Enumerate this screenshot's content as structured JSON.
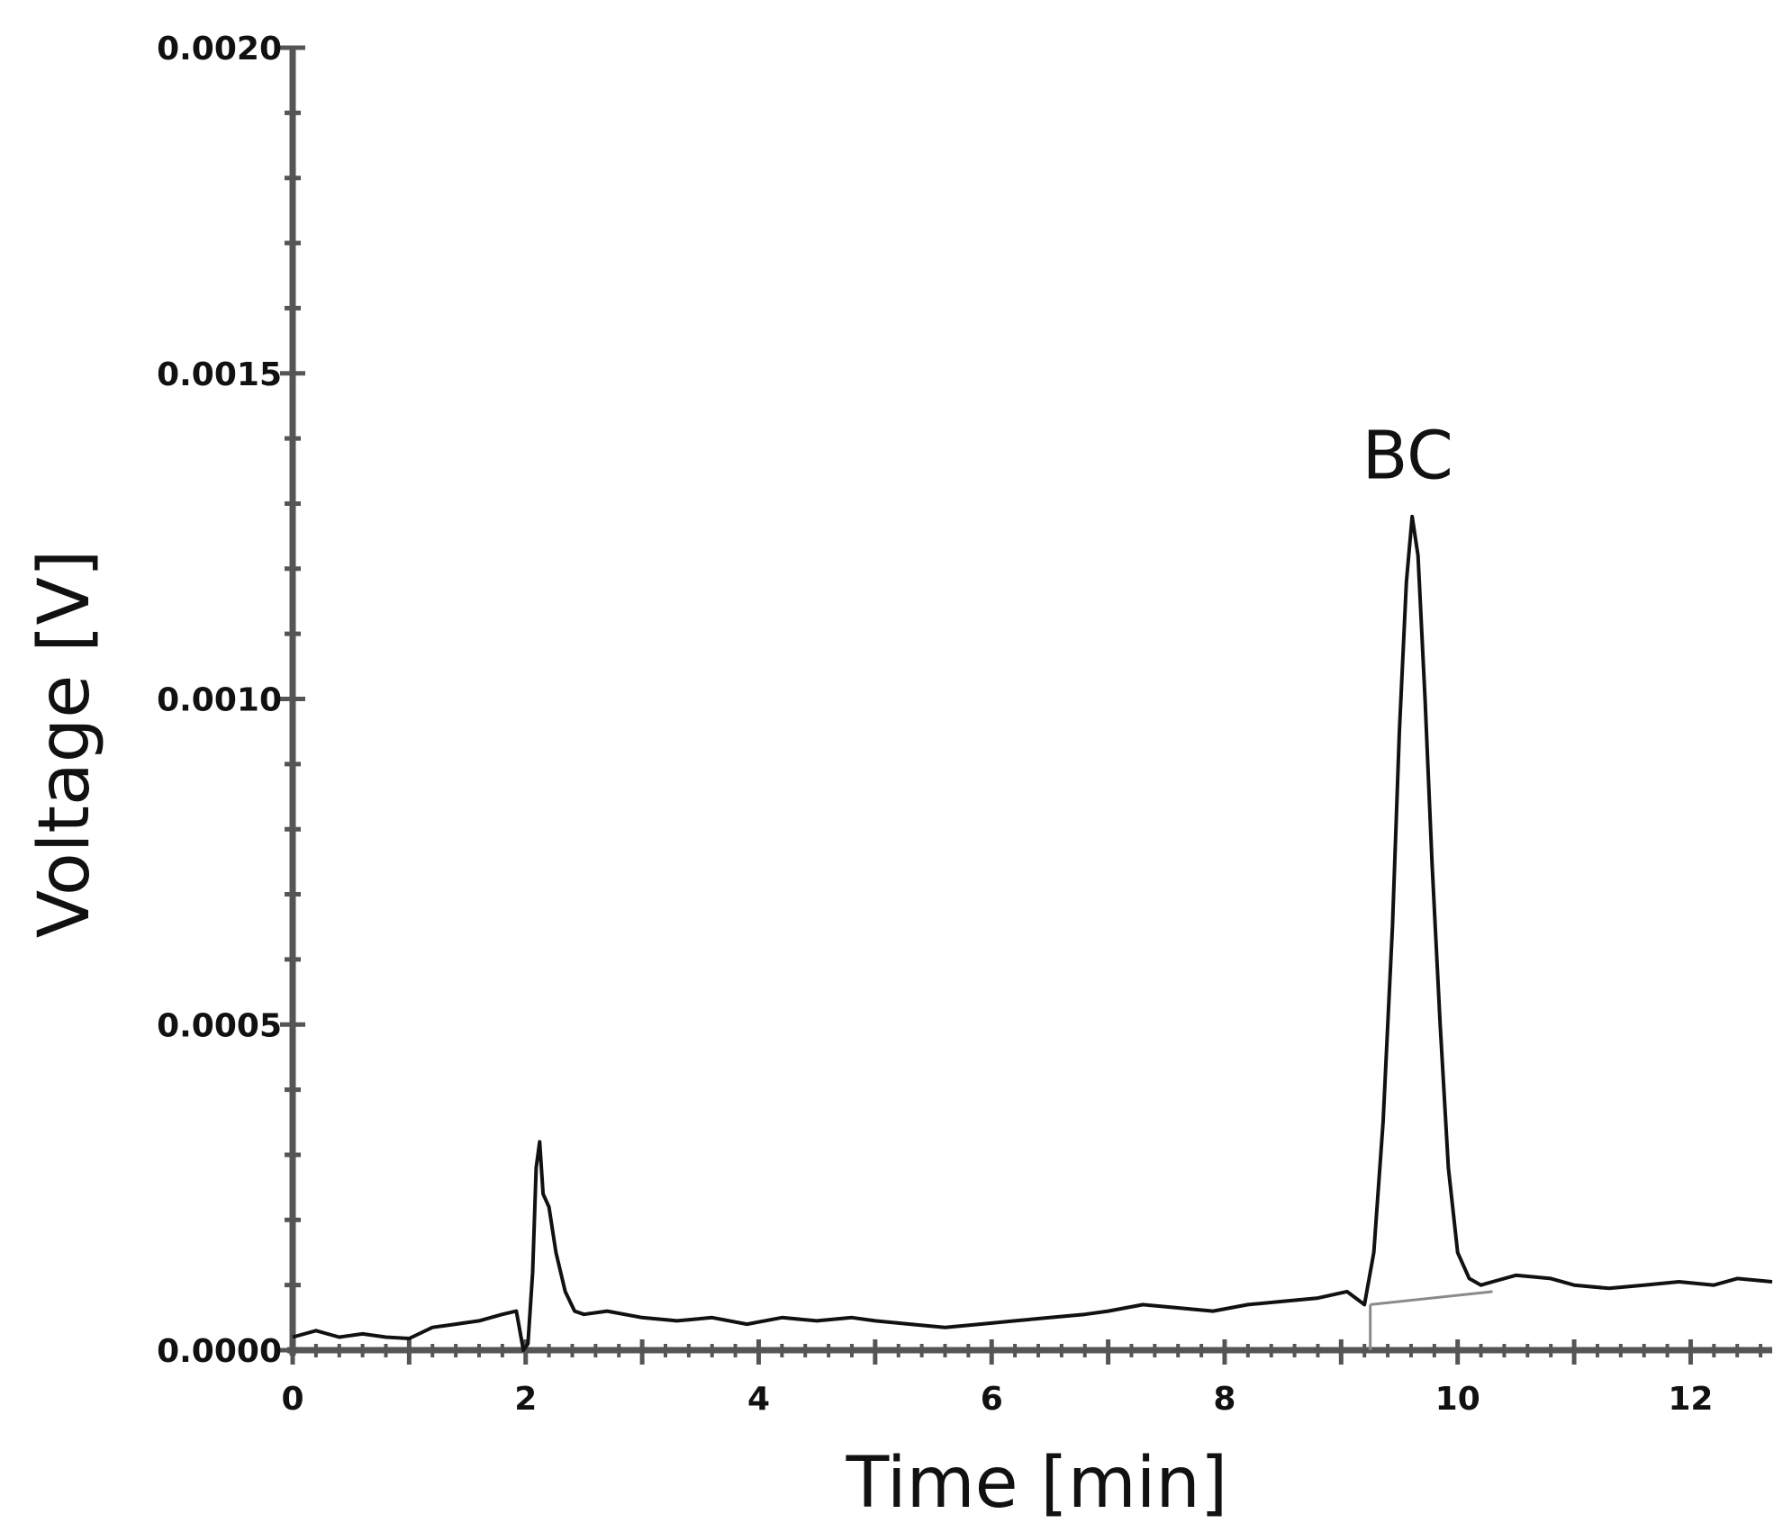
{
  "chart_data": {
    "type": "line",
    "title": "",
    "xlabel": "Time [min]",
    "ylabel": "Voltage [V]",
    "xlim": [
      0,
      12.7
    ],
    "ylim": [
      0,
      0.002
    ],
    "x_ticks": [
      "0",
      "2",
      "4",
      "6",
      "8",
      "10",
      "12"
    ],
    "y_ticks": [
      "0.0000",
      "0.0005",
      "0.0010",
      "0.0015",
      "0.0020"
    ],
    "grid": false,
    "legend": "none",
    "colors": {
      "trace": "#111111",
      "peak": "#444444",
      "axis": "#555555",
      "baseline": "#8a8a8a"
    },
    "series": [
      {
        "x": [
          0,
          0.2,
          0.4,
          0.6,
          0.8,
          1.0,
          1.2,
          1.4,
          1.6,
          1.8,
          1.92,
          1.98,
          2.02,
          2.06,
          2.09,
          2.12,
          2.15,
          2.2,
          2.26,
          2.34,
          2.42,
          2.5,
          2.7,
          3.0,
          3.3,
          3.6,
          3.9,
          4.2,
          4.5,
          4.8,
          5.0,
          5.3,
          5.6,
          5.9,
          6.2,
          6.5,
          6.8,
          7.0,
          7.3,
          7.6,
          7.9,
          8.2,
          8.5,
          8.8,
          9.05,
          9.2,
          9.28,
          9.36,
          9.44,
          9.5,
          9.56,
          9.61,
          9.66,
          9.72,
          9.78,
          9.85,
          9.92,
          10.0,
          10.1,
          10.2,
          10.3,
          10.5,
          10.8,
          11.0,
          11.3,
          11.6,
          11.9,
          12.2,
          12.4,
          12.7
        ],
        "y": [
          2e-05,
          3e-05,
          2e-05,
          2.5e-05,
          2e-05,
          1.8e-05,
          3.5e-05,
          4e-05,
          4.5e-05,
          5.5e-05,
          6e-05,
          0.0,
          1e-05,
          0.00012,
          0.00028,
          0.00032,
          0.00024,
          0.00022,
          0.00015,
          9e-05,
          6e-05,
          5.5e-05,
          6e-05,
          5e-05,
          4.5e-05,
          5e-05,
          4e-05,
          5e-05,
          4.5e-05,
          5e-05,
          4.5e-05,
          4e-05,
          3.5e-05,
          4e-05,
          4.5e-05,
          5e-05,
          5.5e-05,
          6e-05,
          7e-05,
          6.5e-05,
          6e-05,
          7e-05,
          7.5e-05,
          8e-05,
          9e-05,
          7e-05,
          0.00015,
          0.00035,
          0.00065,
          0.00095,
          0.00118,
          0.00128,
          0.00122,
          0.001,
          0.00075,
          0.0005,
          0.00028,
          0.00015,
          0.00011,
          0.0001,
          0.000105,
          0.000115,
          0.00011,
          0.0001,
          9.5e-05,
          0.0001,
          0.000105,
          0.0001,
          0.00011,
          0.000105
        ]
      }
    ],
    "peak_area_baseline": {
      "x": [
        9.25,
        10.3
      ],
      "y": [
        7e-05,
        9e-05
      ]
    },
    "peak_start_marker": {
      "x": 9.25,
      "y": [
        0.0,
        7e-05
      ]
    },
    "annotations": [
      {
        "text": "BC",
        "x": 9.61,
        "y": 0.00138
      }
    ]
  }
}
